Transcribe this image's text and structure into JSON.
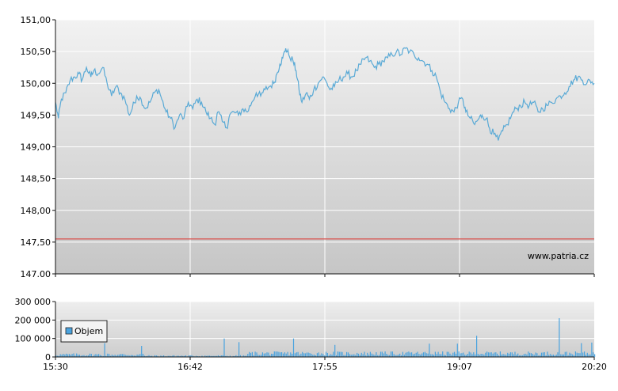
{
  "chart_data": [
    {
      "type": "line",
      "title": "",
      "xlabel": "",
      "ylabel": "",
      "ylim": [
        147.0,
        151.0
      ],
      "y_ticks": [
        151.0,
        150.5,
        150.0,
        149.5,
        149.0,
        148.5,
        148.0,
        147.5,
        147.0
      ],
      "y_tick_labels": [
        "151,00",
        "150,50",
        "150,00",
        "149,50",
        "149,00",
        "148,50",
        "148,00",
        "147,50",
        "147.00"
      ],
      "x_ticks": [
        "15:30",
        "16:42",
        "17:55",
        "19:07",
        "20:20"
      ],
      "reference_line": {
        "value": 147.55,
        "color": "#d9534f"
      },
      "grid": true,
      "watermark": "www.patria.cz",
      "series": [
        {
          "color": "#5aaad6",
          "points": [
            [
              0,
              149.7
            ],
            [
              2,
              149.45
            ],
            [
              4,
              149.75
            ],
            [
              7,
              149.85
            ],
            [
              10,
              150.05
            ],
            [
              13,
              150.1
            ],
            [
              16,
              150.15
            ],
            [
              18,
              150.05
            ],
            [
              21,
              150.25
            ],
            [
              24,
              150.1
            ],
            [
              26,
              150.2
            ],
            [
              29,
              150.15
            ],
            [
              32,
              150.25
            ],
            [
              35,
              150.0
            ],
            [
              38,
              149.8
            ],
            [
              41,
              149.95
            ],
            [
              44,
              149.85
            ],
            [
              47,
              149.75
            ],
            [
              50,
              149.5
            ],
            [
              52,
              149.6
            ],
            [
              55,
              149.8
            ],
            [
              58,
              149.75
            ],
            [
              61,
              149.6
            ],
            [
              64,
              149.7
            ],
            [
              67,
              149.85
            ],
            [
              70,
              149.9
            ],
            [
              72,
              149.75
            ],
            [
              75,
              149.55
            ],
            [
              78,
              149.45
            ],
            [
              81,
              149.3
            ],
            [
              84,
              149.5
            ],
            [
              87,
              149.45
            ],
            [
              90,
              149.7
            ],
            [
              93,
              149.6
            ],
            [
              96,
              149.75
            ],
            [
              99,
              149.7
            ],
            [
              102,
              149.55
            ],
            [
              105,
              149.45
            ],
            [
              108,
              149.35
            ],
            [
              110,
              149.55
            ],
            [
              113,
              149.4
            ],
            [
              116,
              149.3
            ],
            [
              118,
              149.5
            ],
            [
              121,
              149.55
            ],
            [
              124,
              149.5
            ],
            [
              127,
              149.6
            ],
            [
              130,
              149.55
            ],
            [
              133,
              149.7
            ],
            [
              136,
              149.85
            ],
            [
              139,
              149.8
            ],
            [
              142,
              149.9
            ],
            [
              145,
              149.95
            ],
            [
              148,
              150.0
            ],
            [
              150,
              150.15
            ],
            [
              152,
              150.3
            ],
            [
              154,
              150.4
            ],
            [
              156,
              150.55
            ],
            [
              158,
              150.45
            ],
            [
              161,
              150.35
            ],
            [
              163,
              150.2
            ],
            [
              165,
              149.9
            ],
            [
              167,
              149.7
            ],
            [
              170,
              149.85
            ],
            [
              172,
              149.75
            ],
            [
              175,
              149.9
            ],
            [
              178,
              150.0
            ],
            [
              181,
              150.1
            ],
            [
              184,
              150.0
            ],
            [
              186,
              149.9
            ],
            [
              189,
              149.95
            ],
            [
              192,
              150.05
            ],
            [
              195,
              150.1
            ],
            [
              198,
              150.15
            ],
            [
              201,
              150.1
            ],
            [
              204,
              150.2
            ],
            [
              207,
              150.3
            ],
            [
              210,
              150.4
            ],
            [
              213,
              150.35
            ],
            [
              216,
              150.25
            ],
            [
              219,
              150.3
            ],
            [
              222,
              150.35
            ],
            [
              225,
              150.4
            ],
            [
              228,
              150.45
            ],
            [
              231,
              150.5
            ],
            [
              234,
              150.45
            ],
            [
              237,
              150.55
            ],
            [
              240,
              150.5
            ],
            [
              243,
              150.45
            ],
            [
              246,
              150.4
            ],
            [
              249,
              150.35
            ],
            [
              252,
              150.3
            ],
            [
              255,
              150.2
            ],
            [
              258,
              150.1
            ],
            [
              261,
              149.85
            ],
            [
              264,
              149.7
            ],
            [
              267,
              149.6
            ],
            [
              270,
              149.55
            ],
            [
              273,
              149.7
            ],
            [
              276,
              149.75
            ],
            [
              278,
              149.55
            ],
            [
              281,
              149.45
            ],
            [
              284,
              149.35
            ],
            [
              287,
              149.45
            ],
            [
              289,
              149.5
            ],
            [
              292,
              149.45
            ],
            [
              294,
              149.3
            ],
            [
              297,
              149.2
            ],
            [
              300,
              149.1
            ],
            [
              303,
              149.25
            ],
            [
              306,
              149.35
            ],
            [
              309,
              149.5
            ],
            [
              312,
              149.6
            ],
            [
              315,
              149.65
            ],
            [
              318,
              149.7
            ],
            [
              321,
              149.65
            ],
            [
              324,
              149.7
            ],
            [
              327,
              149.55
            ],
            [
              330,
              149.6
            ],
            [
              333,
              149.65
            ],
            [
              336,
              149.7
            ],
            [
              339,
              149.75
            ],
            [
              342,
              149.8
            ],
            [
              345,
              149.85
            ],
            [
              348,
              149.95
            ],
            [
              351,
              150.05
            ],
            [
              354,
              150.1
            ],
            [
              357,
              150.05
            ],
            [
              360,
              150.0
            ],
            [
              362,
              150.05
            ],
            [
              365,
              150.0
            ]
          ]
        }
      ]
    },
    {
      "type": "bar",
      "title": "",
      "xlabel": "",
      "ylabel": "",
      "ylim": [
        0,
        300000
      ],
      "y_ticks": [
        300000,
        200000,
        100000,
        0
      ],
      "y_tick_labels": [
        "300 000",
        "200 000",
        "100 000",
        "0"
      ],
      "x_ticks": [
        "15:30",
        "16:42",
        "17:55",
        "19:07",
        "20:20"
      ],
      "legend": {
        "position": "top-left",
        "entries": [
          "Objem"
        ]
      },
      "grid": true,
      "color": "#4aa3df",
      "series": [
        {
          "name": "Objem",
          "spikes": [
            [
              33,
              75000
            ],
            [
              58,
              60000
            ],
            [
              114,
              100000
            ],
            [
              124,
              80000
            ],
            [
              161,
              100000
            ],
            [
              189,
              65000
            ],
            [
              253,
              72000
            ],
            [
              272,
              72000
            ],
            [
              285,
              115000
            ],
            [
              341,
              210000
            ],
            [
              356,
              75000
            ],
            [
              363,
              78000
            ]
          ]
        }
      ]
    }
  ]
}
